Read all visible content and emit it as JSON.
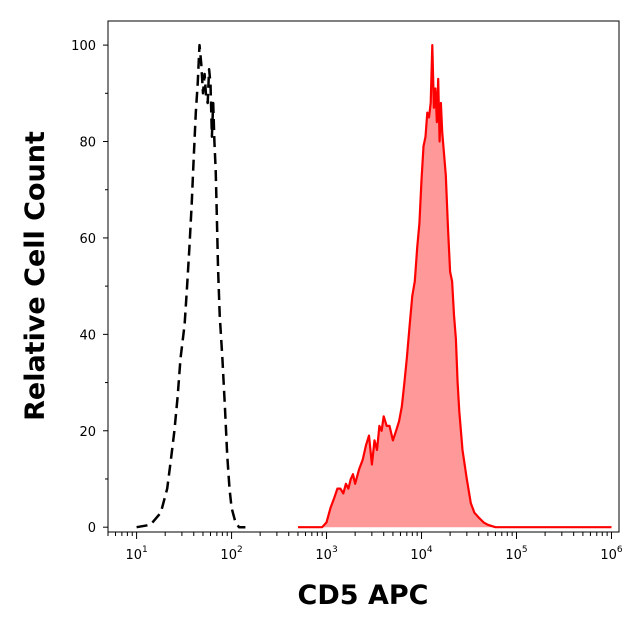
{
  "chart_data": {
    "type": "area",
    "xlabel": "CD5 APC",
    "ylabel": "Relative Cell Count",
    "xscale": "log",
    "xlim": [
      5,
      1200000
    ],
    "ylim": [
      -1,
      105
    ],
    "y_ticks": [
      0,
      20,
      40,
      60,
      80,
      100
    ],
    "x_ticks": [
      {
        "base": "10",
        "exp": "1",
        "value": 10
      },
      {
        "base": "10",
        "exp": "2",
        "value": 100
      },
      {
        "base": "10",
        "exp": "3",
        "value": 1000
      },
      {
        "base": "10",
        "exp": "4",
        "value": 10000
      },
      {
        "base": "10",
        "exp": "5",
        "value": 100000
      },
      {
        "base": "10",
        "exp": "6",
        "value": 1000000
      }
    ],
    "grid": false,
    "series": [
      {
        "style": "dashed",
        "color": "#000000",
        "fill": "none",
        "x": [
          10,
          14,
          18,
          21,
          23,
          25,
          27,
          29,
          32,
          34,
          36,
          38,
          40,
          42,
          44,
          46,
          48,
          50,
          52,
          54,
          56,
          58,
          60,
          62,
          64,
          66,
          68,
          70,
          72,
          75,
          80,
          85,
          90,
          95,
          100,
          110,
          120,
          140
        ],
        "y": [
          0,
          0.5,
          3,
          8,
          14,
          20,
          27,
          35,
          42,
          50,
          58,
          67,
          77,
          86,
          92,
          100,
          96,
          90,
          94,
          89,
          88,
          95,
          92,
          81,
          88,
          80,
          74,
          64,
          54,
          44,
          35,
          25,
          15,
          8,
          4,
          1,
          0,
          0
        ]
      },
      {
        "style": "solid",
        "color": "#ff0000",
        "fill": "#ff9999",
        "x": [
          500,
          900,
          1000,
          1100,
          1200,
          1300,
          1400,
          1500,
          1600,
          1700,
          1800,
          1900,
          2000,
          2200,
          2400,
          2600,
          2800,
          3000,
          3200,
          3400,
          3600,
          3800,
          4000,
          4300,
          4600,
          5000,
          5400,
          5800,
          6200,
          6600,
          7000,
          7500,
          8000,
          8500,
          9000,
          9500,
          10000,
          10500,
          11000,
          11500,
          12000,
          12500,
          13000,
          13500,
          14000,
          14500,
          15000,
          15500,
          16000,
          16500,
          17000,
          18000,
          19000,
          20000,
          21000,
          22000,
          23000,
          24000,
          25000,
          27000,
          30000,
          33000,
          36000,
          40000,
          45000,
          50000,
          60000,
          100000,
          1000000
        ],
        "y": [
          0,
          0,
          1,
          4,
          6,
          8,
          8,
          7,
          9,
          8,
          10,
          11,
          9,
          12,
          14,
          17,
          19,
          13,
          18,
          16,
          21,
          20,
          23,
          21,
          21,
          18,
          20,
          22,
          25,
          30,
          35,
          42,
          48,
          51,
          58,
          63,
          72,
          79,
          81,
          86,
          85,
          88,
          100,
          87,
          91,
          84,
          93,
          80,
          88,
          82,
          79,
          73,
          62,
          53,
          51,
          44,
          39,
          30,
          24,
          16,
          10,
          5,
          3,
          2,
          1,
          0.5,
          0,
          0,
          0
        ]
      }
    ]
  }
}
